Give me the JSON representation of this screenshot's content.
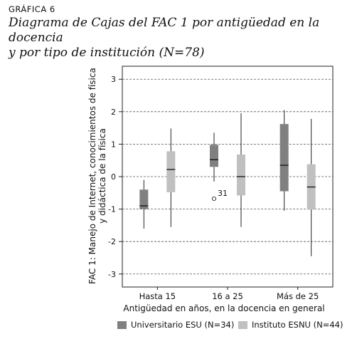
{
  "figure_label": "GRÁFICA 6",
  "title_line1": "Diagrama de Cajas del FAC 1 por antigüedad en la docencia",
  "title_line2": "y por tipo de institución (N=78)",
  "chart_data": {
    "type": "boxplot",
    "categories": [
      "Hasta 15",
      "16 a 25",
      "Más de 25"
    ],
    "xlabel": "Antigüedad en años, en la docencia en general",
    "ylabel_line1": "FAC 1: Manejo de Internet, conocimientos de física",
    "ylabel_line2": "y didáctica de la física",
    "ylim": [
      -3.4,
      3.4
    ],
    "yticks": [
      3,
      2,
      1,
      0,
      -1,
      -2,
      -3
    ],
    "ytick_labels": [
      "3",
      "2",
      "1",
      "0",
      "-1",
      "-2",
      "-3"
    ],
    "grid": "dashed horizontal at ticks",
    "legend_position": "bottom",
    "series": [
      {
        "name": "Universitario ESU (N=34)",
        "color": "#808080",
        "boxes": [
          {
            "whisker_low": -1.6,
            "q1": -1.0,
            "median": -0.9,
            "q3": -0.4,
            "whisker_high": -0.1
          },
          {
            "whisker_low": -0.15,
            "q1": 0.3,
            "median": 0.52,
            "q3": 0.98,
            "whisker_high": 1.35
          },
          {
            "whisker_low": -1.05,
            "q1": -0.45,
            "median": 0.35,
            "q3": 1.62,
            "whisker_high": 2.05
          }
        ]
      },
      {
        "name": "Instituto ESNU (N=44)",
        "color": "#c0c0c0",
        "boxes": [
          {
            "whisker_low": -1.55,
            "q1": -0.48,
            "median": 0.22,
            "q3": 0.78,
            "whisker_high": 1.48
          },
          {
            "whisker_low": -1.55,
            "q1": -0.58,
            "median": 0.0,
            "q3": 0.68,
            "whisker_high": 1.95
          },
          {
            "whisker_low": -2.45,
            "q1": -1.02,
            "median": -0.32,
            "q3": 0.38,
            "whisker_high": 1.78
          }
        ]
      }
    ],
    "outliers": [
      {
        "category": "16 a 25",
        "series": "Universitario ESU (N=34)",
        "value": -0.68,
        "label": "31"
      }
    ]
  }
}
